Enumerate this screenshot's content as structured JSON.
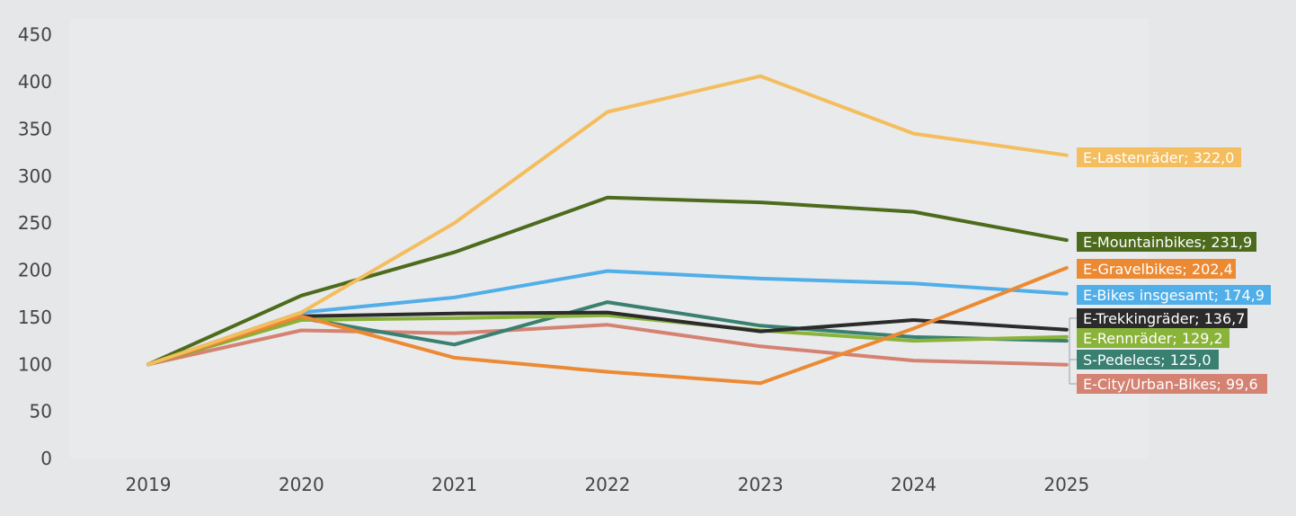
{
  "chart_data": {
    "type": "line",
    "title": "",
    "xlabel": "",
    "ylabel": "",
    "x": [
      "2019",
      "2020",
      "2021",
      "2022",
      "2023",
      "2024",
      "2025"
    ],
    "ylim": [
      0,
      450
    ],
    "yticks": [
      0,
      50,
      100,
      150,
      200,
      250,
      300,
      350,
      400,
      450
    ],
    "grid": false,
    "legend": "end-of-line labels",
    "series": [
      {
        "name": "E-Lastenräder",
        "label": "E-Lastenräder; 322,0",
        "color": "#f4bd5e",
        "values": [
          100,
          155,
          250,
          368,
          406,
          345,
          322.0
        ]
      },
      {
        "name": "E-Mountainbikes",
        "label": "E-Mountainbikes; 231,9",
        "color": "#4d6b1c",
        "values": [
          100,
          173,
          219,
          277,
          272,
          262,
          231.9
        ]
      },
      {
        "name": "E-Gravelbikes",
        "label": "E-Gravelbikes; 202,4",
        "color": "#ec8a33",
        "values": [
          100,
          151,
          107,
          92,
          80,
          138,
          202.4
        ]
      },
      {
        "name": "E-Bikes insgesamt",
        "label": "E-Bikes insgesamt; 174,9",
        "color": "#50aee8",
        "values": [
          100,
          155,
          171,
          199,
          191,
          186,
          174.9
        ]
      },
      {
        "name": "E-Trekkingräder",
        "label": "E-Trekkingräder; 136,7",
        "color": "#2b2b2b",
        "values": [
          100,
          151,
          154,
          155,
          135,
          147,
          136.7
        ]
      },
      {
        "name": "E-Rennräder",
        "label": "E-Rennräder; 129,2",
        "color": "#8ab33a",
        "values": [
          100,
          147,
          149,
          152,
          136,
          125,
          129.2
        ]
      },
      {
        "name": "S-Pedelecs",
        "label": "S-Pedelecs; 125,0",
        "color": "#3a8071",
        "values": [
          100,
          149,
          121,
          166,
          141,
          129,
          125.0
        ]
      },
      {
        "name": "E-City/Urban-Bikes",
        "label": "E-City/Urban-Bikes; 99,6",
        "color": "#d48272",
        "values": [
          100,
          136,
          133,
          142,
          119,
          104,
          99.6
        ]
      }
    ]
  }
}
